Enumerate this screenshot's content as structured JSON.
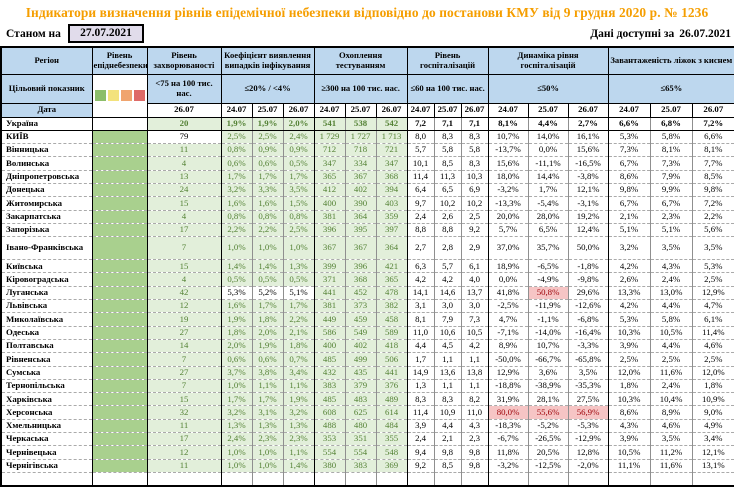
{
  "page": {
    "title": "Індикатори визначення рівнів епідемічної небезпеки відповідно до постанови КМУ від 9 грудня 2020 р. № 1236",
    "as_of_label": "Станом на",
    "as_of_date": "27.07.2021",
    "available_label": "Дані доступні за",
    "available_date": "26.07.2021"
  },
  "colors": {
    "header_bg": "#BDD7EE",
    "epid_green": "#A9D08E",
    "ok_cell_bg": "#E2EFDA",
    "ok_text": "#548235",
    "danger_bg": "#F6C5C5",
    "danger_text": "#9C0006",
    "title_orange": "#F59E00",
    "asof_bg": "#E1DCEB",
    "legend": [
      "#8CBE6A",
      "#F3E27C",
      "#F0A46E",
      "#DE6A68"
    ]
  },
  "table": {
    "left_header": [
      "Регіон",
      "Цільовий показник",
      "Дата"
    ],
    "groups": [
      {
        "title": "Рівень епіднебезпеки",
        "threshold": "legend",
        "dates": []
      },
      {
        "title": "Рівень захворюваності",
        "threshold": "<75 на 100 тис. нас.",
        "dates": [
          "26.07"
        ]
      },
      {
        "title": "Коефіцієнт виявлення випадків інфікування",
        "threshold": "≤20% / <4%",
        "dates": [
          "24.07",
          "25.07",
          "26.07"
        ]
      },
      {
        "title": "Охоплення тестуванням",
        "threshold": "≥300 на 100 тис. нас.",
        "dates": [
          "24.07",
          "25.07",
          "26.07"
        ]
      },
      {
        "title": "Рівень госпіталізацій",
        "threshold": "≤60 на 100 тис. нас.",
        "dates": [
          "24.07",
          "25.07",
          "26.07"
        ]
      },
      {
        "title": "Динаміка рівня госпіталізацій",
        "threshold": "≤50%",
        "dates": [
          "24.07",
          "25.07",
          "26.07"
        ]
      },
      {
        "title": "Завантаженість ліжок з киснем",
        "threshold": "≤65%",
        "dates": [
          "24.07",
          "25.07",
          "26.07"
        ]
      }
    ],
    "rows": [
      {
        "name": "Україна",
        "bold": true,
        "solid": true,
        "epid": "none",
        "inc": "20",
        "det": [
          "1,9%",
          "1,9%",
          "2,0%"
        ],
        "test": [
          "541",
          "538",
          "542"
        ],
        "hosp": [
          "7,2",
          "7,1",
          "7,1"
        ],
        "dyn": [
          "8,1%",
          "4,4%",
          "2,7%"
        ],
        "beds": [
          "6,6%",
          "6,8%",
          "7,2%"
        ]
      },
      {
        "name": "КИЇВ",
        "inc": "79",
        "inc_alert": true,
        "det": [
          "2,5%",
          "2,5%",
          "2,4%"
        ],
        "test": [
          "1 729",
          "1 727",
          "1 713"
        ],
        "hosp": [
          "8,0",
          "8,3",
          "8,3"
        ],
        "dyn": [
          "10,7%",
          "14,0%",
          "16,1%"
        ],
        "beds": [
          "5,3%",
          "5,8%",
          "6,6%"
        ]
      },
      {
        "name": "Вінницька",
        "inc": "11",
        "det": [
          "0,8%",
          "0,9%",
          "0,9%"
        ],
        "test": [
          "712",
          "718",
          "721"
        ],
        "hosp": [
          "5,7",
          "5,8",
          "5,8"
        ],
        "dyn": [
          "-13,7%",
          "0,0%",
          "15,6%"
        ],
        "beds": [
          "7,3%",
          "8,1%",
          "8,1%"
        ]
      },
      {
        "name": "Волинська",
        "inc": "4",
        "det": [
          "0,6%",
          "0,6%",
          "0,5%"
        ],
        "test": [
          "347",
          "334",
          "347"
        ],
        "hosp": [
          "10,1",
          "8,5",
          "8,3"
        ],
        "dyn": [
          "15,6%",
          "-11,1%",
          "-16,5%"
        ],
        "beds": [
          "6,7%",
          "7,3%",
          "7,7%"
        ]
      },
      {
        "name": "Дніпропетровська",
        "inc": "13",
        "det": [
          "1,7%",
          "1,7%",
          "1,7%"
        ],
        "test": [
          "365",
          "367",
          "368"
        ],
        "hosp": [
          "11,4",
          "11,3",
          "10,3"
        ],
        "dyn": [
          "18,0%",
          "14,4%",
          "-3,8%"
        ],
        "beds": [
          "8,6%",
          "7,9%",
          "8,5%"
        ]
      },
      {
        "name": "Донецька",
        "inc": "24",
        "det": [
          "3,2%",
          "3,3%",
          "3,5%"
        ],
        "test": [
          "412",
          "402",
          "394"
        ],
        "hosp": [
          "6,4",
          "6,5",
          "6,9"
        ],
        "dyn": [
          "-3,2%",
          "1,7%",
          "12,1%"
        ],
        "beds": [
          "9,8%",
          "9,9%",
          "9,8%"
        ]
      },
      {
        "name": "Житомирська",
        "inc": "15",
        "det": [
          "1,6%",
          "1,6%",
          "1,5%"
        ],
        "test": [
          "400",
          "390",
          "403"
        ],
        "hosp": [
          "9,7",
          "10,2",
          "10,2"
        ],
        "dyn": [
          "-13,3%",
          "-5,4%",
          "-3,1%"
        ],
        "beds": [
          "6,7%",
          "6,7%",
          "7,2%"
        ]
      },
      {
        "name": "Закарпатська",
        "inc": "4",
        "det": [
          "0,8%",
          "0,8%",
          "0,8%"
        ],
        "test": [
          "381",
          "364",
          "359"
        ],
        "hosp": [
          "2,4",
          "2,6",
          "2,5"
        ],
        "dyn": [
          "20,0%",
          "28,0%",
          "19,2%"
        ],
        "beds": [
          "2,1%",
          "2,3%",
          "2,2%"
        ]
      },
      {
        "name": "Запорізька",
        "inc": "17",
        "det": [
          "2,2%",
          "2,2%",
          "2,5%"
        ],
        "test": [
          "396",
          "395",
          "397"
        ],
        "hosp": [
          "8,8",
          "8,8",
          "9,2"
        ],
        "dyn": [
          "5,7%",
          "6,5%",
          "12,4%"
        ],
        "beds": [
          "5,1%",
          "5,1%",
          "5,6%"
        ]
      },
      {
        "name": "Івано-Франківська",
        "tall": true,
        "inc": "7",
        "det": [
          "1,0%",
          "1,0%",
          "1,0%"
        ],
        "test": [
          "367",
          "367",
          "364"
        ],
        "hosp": [
          "2,7",
          "2,8",
          "2,9"
        ],
        "dyn": [
          "37,0%",
          "35,7%",
          "50,0%"
        ],
        "beds": [
          "3,2%",
          "3,5%",
          "3,5%"
        ]
      },
      {
        "name": "Київська",
        "inc": "15",
        "det": [
          "1,4%",
          "1,4%",
          "1,3%"
        ],
        "test": [
          "399",
          "396",
          "421"
        ],
        "hosp": [
          "6,3",
          "5,7",
          "6,1"
        ],
        "dyn": [
          "18,9%",
          "-6,5%",
          "-1,8%"
        ],
        "beds": [
          "4,2%",
          "4,3%",
          "5,3%"
        ]
      },
      {
        "name": "Кіровоградська",
        "inc": "4",
        "det": [
          "0,5%",
          "0,5%",
          "0,5%"
        ],
        "test": [
          "371",
          "368",
          "365"
        ],
        "hosp": [
          "4,2",
          "4,2",
          "4,0"
        ],
        "dyn": [
          "0,0%",
          "-4,9%",
          "-9,8%"
        ],
        "beds": [
          "2,6%",
          "2,4%",
          "2,5%"
        ]
      },
      {
        "name": "Луганська",
        "inc": "42",
        "det": [
          "5,3%",
          "5,2%",
          "5,1%"
        ],
        "det_alert": true,
        "test": [
          "441",
          "452",
          "478"
        ],
        "hosp": [
          "14,1",
          "14,6",
          "13,7"
        ],
        "dyn": [
          "41,8%",
          "50,8%",
          "29,6%"
        ],
        "dyn_danger": [
          false,
          true,
          false
        ],
        "beds": [
          "13,3%",
          "13,0%",
          "12,9%"
        ]
      },
      {
        "name": "Львівська",
        "inc": "12",
        "det": [
          "1,6%",
          "1,7%",
          "1,7%"
        ],
        "test": [
          "381",
          "373",
          "382"
        ],
        "hosp": [
          "3,1",
          "3,0",
          "3,0"
        ],
        "dyn": [
          "-2,5%",
          "-11,9%",
          "-12,6%"
        ],
        "beds": [
          "4,2%",
          "4,4%",
          "4,7%"
        ]
      },
      {
        "name": "Миколаївська",
        "inc": "19",
        "det": [
          "1,9%",
          "1,8%",
          "2,2%"
        ],
        "test": [
          "449",
          "459",
          "458"
        ],
        "hosp": [
          "8,1",
          "7,9",
          "7,3"
        ],
        "dyn": [
          "4,7%",
          "-1,1%",
          "-6,8%"
        ],
        "beds": [
          "5,3%",
          "5,8%",
          "6,1%"
        ]
      },
      {
        "name": "Одеська",
        "inc": "27",
        "det": [
          "1,8%",
          "2,0%",
          "2,1%"
        ],
        "test": [
          "586",
          "549",
          "589"
        ],
        "hosp": [
          "11,0",
          "10,6",
          "10,5"
        ],
        "dyn": [
          "-7,1%",
          "-14,0%",
          "-16,4%"
        ],
        "beds": [
          "10,3%",
          "10,5%",
          "11,4%"
        ]
      },
      {
        "name": "Полтавська",
        "inc": "14",
        "det": [
          "2,0%",
          "1,9%",
          "1,8%"
        ],
        "test": [
          "400",
          "402",
          "418"
        ],
        "hosp": [
          "4,4",
          "4,5",
          "4,2"
        ],
        "dyn": [
          "8,9%",
          "10,7%",
          "-3,3%"
        ],
        "beds": [
          "3,9%",
          "4,4%",
          "4,6%"
        ]
      },
      {
        "name": "Рівненська",
        "inc": "7",
        "det": [
          "0,6%",
          "0,6%",
          "0,7%"
        ],
        "test": [
          "485",
          "499",
          "506"
        ],
        "hosp": [
          "1,7",
          "1,1",
          "1,1"
        ],
        "dyn": [
          "-50,0%",
          "-66,7%",
          "-65,8%"
        ],
        "beds": [
          "2,5%",
          "2,5%",
          "2,5%"
        ]
      },
      {
        "name": "Сумська",
        "inc": "27",
        "det": [
          "3,7%",
          "3,8%",
          "3,4%"
        ],
        "test": [
          "432",
          "435",
          "441"
        ],
        "hosp": [
          "14,9",
          "13,6",
          "13,8"
        ],
        "dyn": [
          "12,9%",
          "3,6%",
          "3,5%"
        ],
        "beds": [
          "12,0%",
          "11,6%",
          "12,0%"
        ]
      },
      {
        "name": "Тернопільська",
        "inc": "7",
        "det": [
          "1,0%",
          "1,1%",
          "1,1%"
        ],
        "test": [
          "383",
          "379",
          "376"
        ],
        "hosp": [
          "1,3",
          "1,1",
          "1,1"
        ],
        "dyn": [
          "-18,8%",
          "-38,9%",
          "-35,3%"
        ],
        "beds": [
          "1,8%",
          "2,4%",
          "1,8%"
        ]
      },
      {
        "name": "Харківська",
        "inc": "15",
        "det": [
          "1,7%",
          "1,7%",
          "1,9%"
        ],
        "test": [
          "485",
          "483",
          "489"
        ],
        "hosp": [
          "8,3",
          "8,3",
          "8,2"
        ],
        "dyn": [
          "31,9%",
          "28,1%",
          "27,5%"
        ],
        "beds": [
          "10,3%",
          "10,4%",
          "10,9%"
        ]
      },
      {
        "name": "Херсонська",
        "inc": "32",
        "det": [
          "3,2%",
          "3,1%",
          "3,2%"
        ],
        "test": [
          "608",
          "625",
          "614"
        ],
        "hosp": [
          "11,4",
          "10,9",
          "11,0"
        ],
        "dyn": [
          "80,0%",
          "55,6%",
          "56,9%"
        ],
        "dyn_danger": [
          true,
          true,
          true
        ],
        "beds": [
          "8,6%",
          "8,9%",
          "9,0%"
        ]
      },
      {
        "name": "Хмельницька",
        "inc": "11",
        "det": [
          "1,3%",
          "1,3%",
          "1,3%"
        ],
        "test": [
          "488",
          "480",
          "484"
        ],
        "hosp": [
          "3,9",
          "4,4",
          "4,3"
        ],
        "dyn": [
          "-18,3%",
          "-5,2%",
          "-5,3%"
        ],
        "beds": [
          "4,3%",
          "4,6%",
          "4,9%"
        ]
      },
      {
        "name": "Черкаська",
        "inc": "17",
        "det": [
          "2,4%",
          "2,3%",
          "2,3%"
        ],
        "test": [
          "353",
          "351",
          "355"
        ],
        "hosp": [
          "2,4",
          "2,1",
          "2,3"
        ],
        "dyn": [
          "-6,7%",
          "-26,5%",
          "-12,9%"
        ],
        "beds": [
          "3,9%",
          "3,5%",
          "3,4%"
        ]
      },
      {
        "name": "Чернівецька",
        "inc": "12",
        "det": [
          "1,0%",
          "1,0%",
          "1,1%"
        ],
        "test": [
          "554",
          "554",
          "548"
        ],
        "hosp": [
          "9,4",
          "9,8",
          "9,8"
        ],
        "dyn": [
          "11,8%",
          "20,5%",
          "12,8%"
        ],
        "beds": [
          "10,5%",
          "11,2%",
          "12,1%"
        ]
      },
      {
        "name": "Чернігівська",
        "inc": "11",
        "det": [
          "1,0%",
          "1,0%",
          "1,4%"
        ],
        "test": [
          "380",
          "383",
          "369"
        ],
        "hosp": [
          "9,2",
          "8,5",
          "9,8"
        ],
        "dyn": [
          "-3,2%",
          "-12,5%",
          "-2,0%"
        ],
        "beds": [
          "11,1%",
          "11,6%",
          "13,1%"
        ]
      }
    ]
  }
}
